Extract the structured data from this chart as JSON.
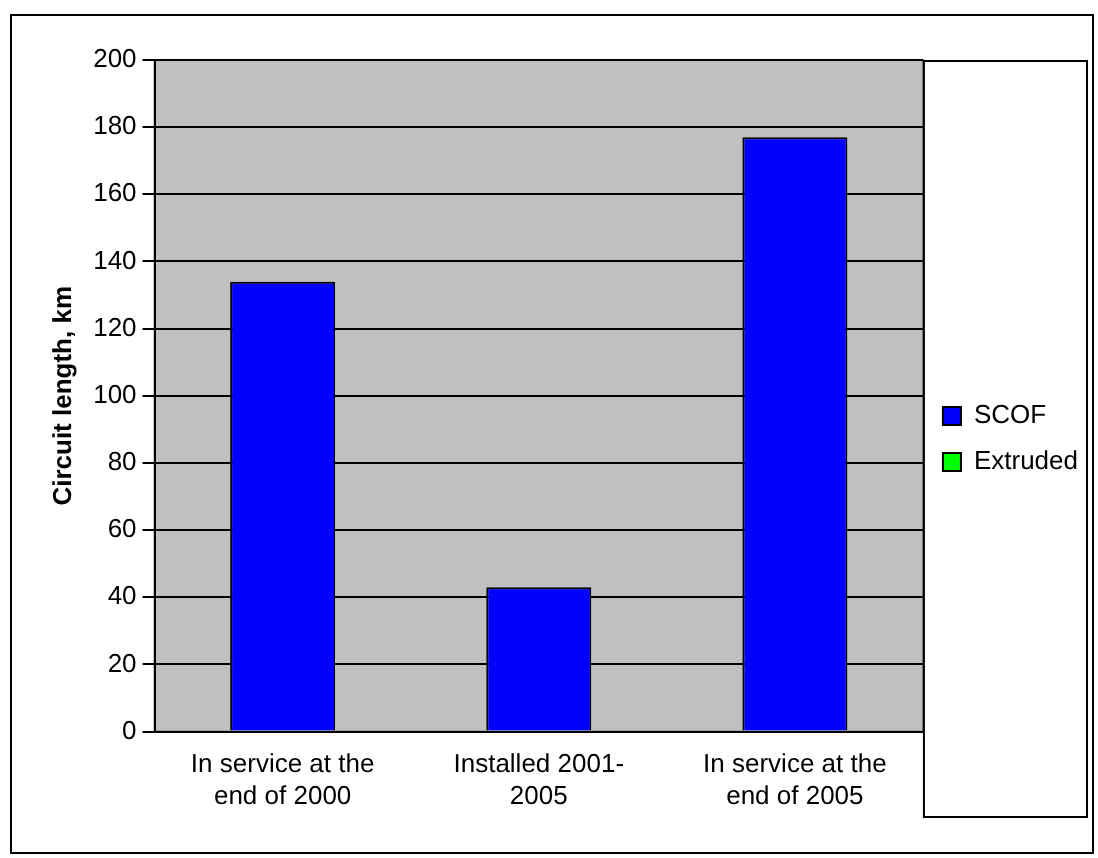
{
  "chart_data": {
    "type": "bar",
    "ylabel": "Circuit length, km",
    "categories": [
      "In service at the end of 2000",
      "Installed 2001-2005",
      "In service at the end of 2005"
    ],
    "series": [
      {
        "name": "SCOF",
        "color": "#0000ff",
        "values": [
          134,
          43,
          177
        ]
      },
      {
        "name": "Extruded",
        "color": "#00ff00",
        "values": [
          null,
          null,
          null
        ]
      }
    ],
    "stacked": true,
    "ylim": [
      0,
      200
    ],
    "yticks": [
      0,
      20,
      40,
      60,
      80,
      100,
      120,
      140,
      160,
      180,
      200
    ],
    "grid": "y",
    "legend": "right"
  }
}
